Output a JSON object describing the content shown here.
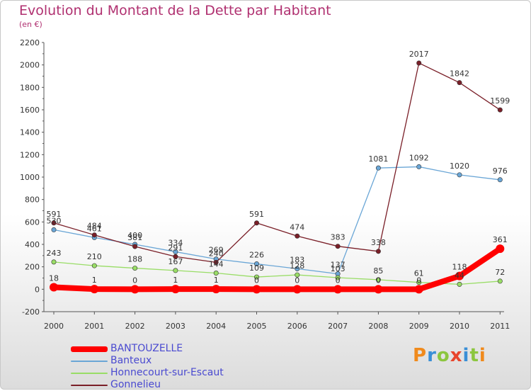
{
  "title": "Evolution du Montant de la Dette par Habitant",
  "subtitle": "(en €)",
  "logo_text": "Proxiti",
  "logo_colors": [
    "#f08a1c",
    "#3a8fd6",
    "#8cc63f",
    "#e8452c",
    "#3a8fd6",
    "#8cc63f",
    "#f08a1c"
  ],
  "chart_data": {
    "type": "line",
    "x": [
      "2000",
      "2001",
      "2002",
      "2003",
      "2004",
      "2005",
      "2006",
      "2007",
      "2008",
      "2009",
      "2010",
      "2011"
    ],
    "ylim": [
      -200,
      2200
    ],
    "yticks": [
      "-200",
      "0",
      "200",
      "400",
      "600",
      "800",
      "1000",
      "1200",
      "1400",
      "1600",
      "1800",
      "2000",
      "2200"
    ],
    "grid": false,
    "legend_position": "bottom-left",
    "series": [
      {
        "name": "BANTOUZELLE",
        "color": "#ff0000",
        "values": [
          18,
          1,
          0,
          1,
          1,
          0,
          0,
          0,
          0,
          0,
          118,
          361
        ],
        "labels": [
          "18",
          "1",
          "0",
          "1",
          "1",
          "0",
          "0",
          "0",
          "0",
          "0",
          "118",
          "361"
        ]
      },
      {
        "name": "Banteux",
        "color": "#6aa6d6",
        "values": [
          530,
          461,
          400,
          334,
          269,
          226,
          183,
          137,
          1081,
          1092,
          1020,
          976
        ],
        "labels": [
          "530",
          "461",
          "400",
          "334",
          "269",
          "226",
          "183",
          "137",
          "1081",
          "1092",
          "1020",
          "976"
        ]
      },
      {
        "name": "Honnecourt-sur-Escaut",
        "color": "#99dd66",
        "values": [
          243,
          210,
          188,
          167,
          144,
          109,
          128,
          103,
          85,
          61,
          44,
          72
        ],
        "labels": [
          "243",
          "210",
          "188",
          "167",
          "144",
          "109",
          "128",
          "103",
          "85",
          "61",
          "44",
          "72"
        ]
      },
      {
        "name": "Gonnelieu",
        "color": "#7a1f28",
        "values": [
          591,
          484,
          381,
          291,
          240,
          591,
          474,
          383,
          338,
          2017,
          1842,
          1599
        ],
        "labels": [
          "591",
          "484",
          "381",
          "291",
          "240",
          "591",
          "474",
          "383",
          "338",
          "2017",
          "1842",
          "1599"
        ]
      }
    ]
  }
}
